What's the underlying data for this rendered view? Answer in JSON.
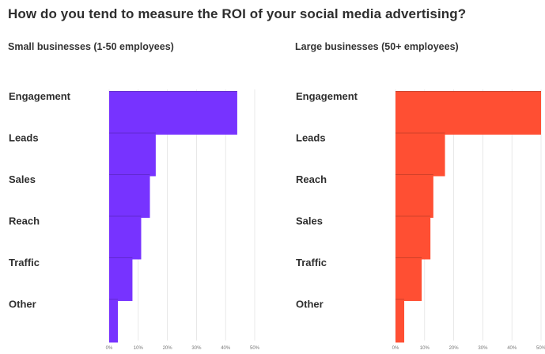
{
  "title": "How do you tend to measure the ROI of your social media advertising?",
  "chart_data": [
    {
      "type": "bar",
      "orientation": "horizontal",
      "subtitle": "Small businesses (1-50 employees)",
      "categories": [
        "Engagement",
        "Leads",
        "Sales",
        "Reach",
        "Traffic",
        "Other"
      ],
      "values": [
        44,
        16,
        14,
        11,
        8,
        3
      ],
      "unit": "%",
      "xlim": [
        0,
        50
      ],
      "xticks": [
        "0%",
        "10%",
        "20%",
        "30%",
        "40%",
        "50%"
      ],
      "color": "#7733ff",
      "grid": true
    },
    {
      "type": "bar",
      "orientation": "horizontal",
      "subtitle": "Large businesses (50+ employees)",
      "categories": [
        "Engagement",
        "Leads",
        "Reach",
        "Sales",
        "Traffic",
        "Other"
      ],
      "values": [
        50,
        17,
        13,
        12,
        9,
        3
      ],
      "unit": "%",
      "xlim": [
        0,
        50
      ],
      "xticks": [
        "0%",
        "10%",
        "20%",
        "30%",
        "40%",
        "50%"
      ],
      "color": "#ff4f33",
      "grid": true
    }
  ]
}
